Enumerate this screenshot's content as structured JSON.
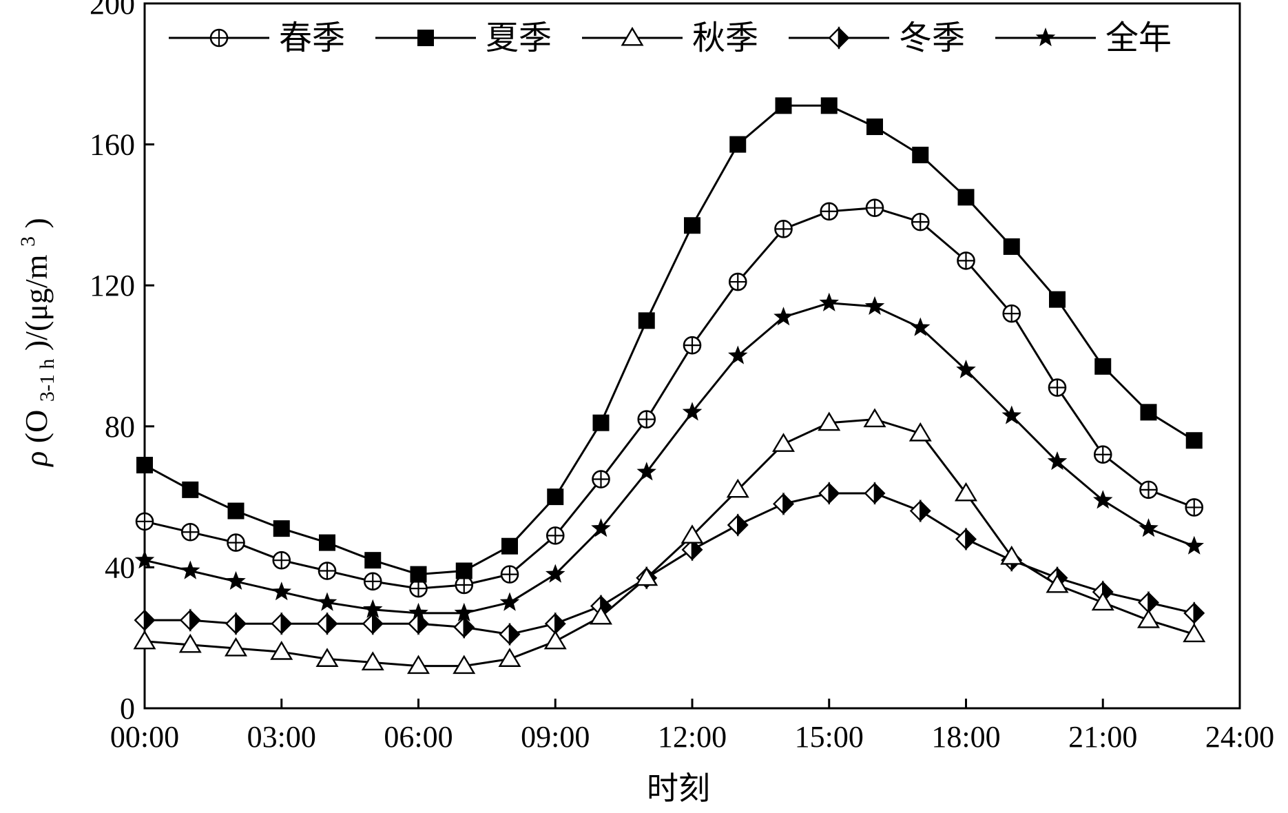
{
  "chart_data": {
    "type": "line",
    "xlabel": "时刻",
    "ylabel": {
      "rho": "ρ",
      "paren_open": "(O",
      "sub": "3-1 h",
      "mid": ")/(μg/m",
      "sup": "3",
      "paren_close": ")"
    },
    "xlim": [
      0,
      24
    ],
    "ylim": [
      0,
      200
    ],
    "x_ticks": [
      "00:00",
      "03:00",
      "06:00",
      "09:00",
      "12:00",
      "15:00",
      "18:00",
      "21:00",
      "24:00"
    ],
    "y_ticks": [
      "0",
      "40",
      "80",
      "120",
      "160",
      "200"
    ],
    "x_tick_values": [
      0,
      3,
      6,
      9,
      12,
      15,
      18,
      21,
      24
    ],
    "y_tick_values": [
      0,
      40,
      80,
      120,
      160,
      200
    ],
    "grid": false,
    "legend_position": "top",
    "x": [
      0,
      1,
      2,
      3,
      4,
      5,
      6,
      7,
      8,
      9,
      10,
      11,
      12,
      13,
      14,
      15,
      16,
      17,
      18,
      19,
      20,
      21,
      22,
      23
    ],
    "series": [
      {
        "name": "春季",
        "marker": "circle-plus",
        "values": [
          53,
          50,
          47,
          42,
          39,
          36,
          34,
          35,
          38,
          49,
          65,
          82,
          103,
          121,
          136,
          141,
          142,
          138,
          127,
          112,
          91,
          72,
          62,
          57
        ]
      },
      {
        "name": "夏季",
        "marker": "square-filled",
        "values": [
          69,
          62,
          56,
          51,
          47,
          42,
          38,
          39,
          46,
          60,
          81,
          110,
          137,
          160,
          171,
          171,
          165,
          157,
          145,
          131,
          116,
          97,
          84,
          76
        ]
      },
      {
        "name": "秋季",
        "marker": "triangle-open",
        "values": [
          19,
          18,
          17,
          16,
          14,
          13,
          12,
          12,
          14,
          19,
          26,
          37,
          49,
          62,
          75,
          81,
          82,
          78,
          61,
          43,
          35,
          30,
          25,
          21
        ]
      },
      {
        "name": "冬季",
        "marker": "diamond-half",
        "values": [
          25,
          25,
          24,
          24,
          24,
          24,
          24,
          23,
          21,
          24,
          29,
          37,
          45,
          52,
          58,
          61,
          61,
          56,
          48,
          42,
          37,
          33,
          30,
          27
        ]
      },
      {
        "name": "全年",
        "marker": "star-filled",
        "values": [
          42,
          39,
          36,
          33,
          30,
          28,
          27,
          27,
          30,
          38,
          51,
          67,
          84,
          100,
          111,
          115,
          114,
          108,
          96,
          83,
          70,
          59,
          51,
          46
        ]
      }
    ]
  }
}
